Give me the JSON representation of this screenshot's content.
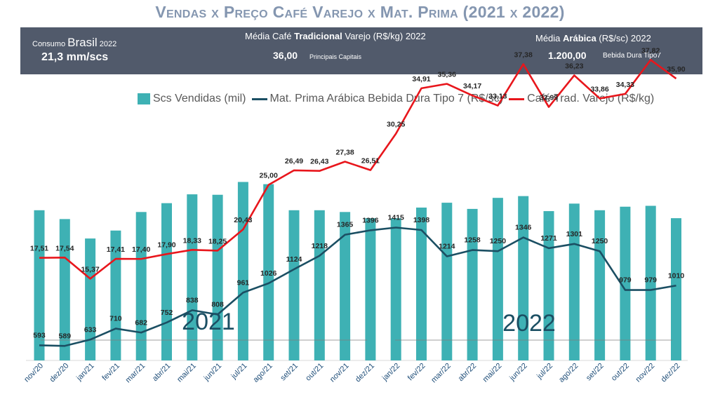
{
  "title": "Vendas x Preço Café Varejo x Mat. Prima (2021 x 2022)",
  "banner": {
    "consumo_prefix": "Consumo",
    "consumo_country": "Brasil",
    "consumo_year": "2022",
    "consumo_value": "21,3 mm/scs",
    "media_trad_prefix": "Média Café",
    "media_trad_bold": "Tradicional",
    "media_trad_suffix": "Varejo (R$/kg) 2022",
    "media_trad_value": "36,00",
    "media_trad_sub": "Principais Capitais",
    "media_arab_prefix": "Média",
    "media_arab_bold": "Arábica",
    "media_arab_suffix": "(R$/sc) 2022",
    "media_arab_value": "1.200,00",
    "media_arab_sub": "Bebida Dura Tipo7"
  },
  "colors": {
    "bars": "#3eb1b4",
    "materia_prima": "#1b4f63",
    "varejo": "#e8161c",
    "title": "#8496b0",
    "banner_bg": "#515a6b"
  },
  "chart_data": {
    "type": "bar",
    "categories": [
      "nov/20",
      "dez/20",
      "jan/21",
      "fev/21",
      "mar/21",
      "abr/21",
      "mai/21",
      "jun/21",
      "jul/21",
      "ago/21",
      "set/21",
      "out/21",
      "nov/21",
      "dez/21",
      "jan/22",
      "fev/22",
      "mar/22",
      "abr/22",
      "mai/22",
      "jun/22",
      "jul/22",
      "ago/22",
      "set/22",
      "out/22",
      "nov/22",
      "dez/22"
    ],
    "series": [
      {
        "name": "Scs Vendidas (mil)",
        "kind": "bar",
        "values": [
          1700,
          1600,
          1380,
          1470,
          1680,
          1780,
          1880,
          1875,
          2020,
          1995,
          1700,
          1700,
          1680,
          1610,
          1610,
          1730,
          1785,
          1715,
          1840,
          1860,
          1690,
          1775,
          1700,
          1740,
          1750,
          1610
        ]
      },
      {
        "name": "Mat. Prima Arábica Bebida Dura Tipo 7  (R$/sc)",
        "kind": "line",
        "values": [
          593,
          589,
          633,
          710,
          682,
          752,
          838,
          808,
          961,
          1026,
          1124,
          1218,
          1365,
          1396,
          1415,
          1398,
          1214,
          1258,
          1250,
          1346,
          1271,
          1301,
          1250,
          979,
          979,
          1010
        ],
        "labels": [
          "593",
          "589",
          "633",
          "710",
          "682",
          "752",
          "838",
          "808",
          "961",
          "1026",
          "1124",
          "1218",
          "1365",
          "1396",
          "1415",
          "1398",
          "1214",
          "1258",
          "1250",
          "1346",
          "1271",
          "1301",
          "1250",
          "979",
          "979",
          "1010"
        ]
      },
      {
        "name": "Café Trad. Varejo (R$/kg)",
        "kind": "line",
        "values": [
          17.51,
          17.54,
          15.37,
          17.41,
          17.4,
          17.9,
          18.33,
          18.25,
          20.43,
          25.0,
          26.49,
          26.43,
          27.38,
          26.51,
          30.25,
          34.91,
          35.36,
          34.17,
          33.13,
          37.38,
          32.99,
          36.23,
          33.86,
          34.33,
          37.82,
          35.9
        ],
        "labels": [
          "17,51",
          "17,54",
          "15,37",
          "17,41",
          "17,40",
          "17,90",
          "18,33",
          "18,25",
          "20,43",
          "25,00",
          "26,49",
          "26,43",
          "27,38",
          "26,51",
          "30,25",
          "34,91",
          "35,36",
          "34,17",
          "33,13",
          "37,38",
          "32,99",
          "36,23",
          "33,86",
          "34,33",
          "37,82",
          "35,90"
        ]
      }
    ],
    "year_labels": [
      "2021",
      "2022"
    ],
    "legend_position": "top",
    "grid": false
  }
}
